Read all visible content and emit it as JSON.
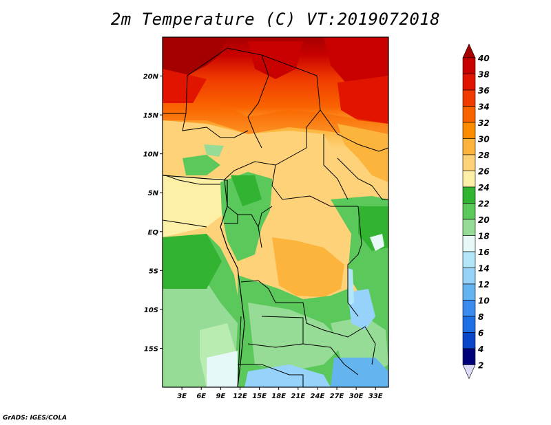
{
  "header": {
    "title": "2m Temperature (C) VT:2019072018"
  },
  "footer": {
    "credit": "GrADS: IGES/COLA"
  },
  "map": {
    "lon_range": [
      0,
      35
    ],
    "lat_range": [
      -20,
      25
    ],
    "lat_ticks": [
      "20N",
      "15N",
      "10N",
      "5N",
      "EQ",
      "5S",
      "10S",
      "15S"
    ],
    "lat_tick_values": [
      20,
      15,
      10,
      5,
      0,
      -5,
      -10,
      -15
    ],
    "lon_ticks": [
      "3E",
      "6E",
      "9E",
      "12E",
      "15E",
      "18E",
      "21E",
      "24E",
      "27E",
      "30E",
      "33E"
    ],
    "lon_tick_values": [
      3,
      6,
      9,
      12,
      15,
      18,
      21,
      24,
      27,
      30,
      33
    ]
  },
  "colorbar": {
    "labels": [
      "40",
      "38",
      "36",
      "34",
      "32",
      "30",
      "28",
      "26",
      "24",
      "22",
      "20",
      "18",
      "16",
      "14",
      "12",
      "10",
      "8",
      "6",
      "4",
      "2"
    ],
    "colors": [
      "#a50000",
      "#c80000",
      "#e11400",
      "#f03c00",
      "#fa6400",
      "#fc8c00",
      "#fdb43c",
      "#fdd278",
      "#fdf0a6",
      "#32b432",
      "#5ac85a",
      "#96dc96",
      "#e6f8f8",
      "#b4e6fa",
      "#96d2fa",
      "#64b4f0",
      "#3c8cf0",
      "#1e6ee6",
      "#0a46c8",
      "#000078"
    ],
    "top_color": "#a50000",
    "bottom_color": "#dcdcf8"
  }
}
